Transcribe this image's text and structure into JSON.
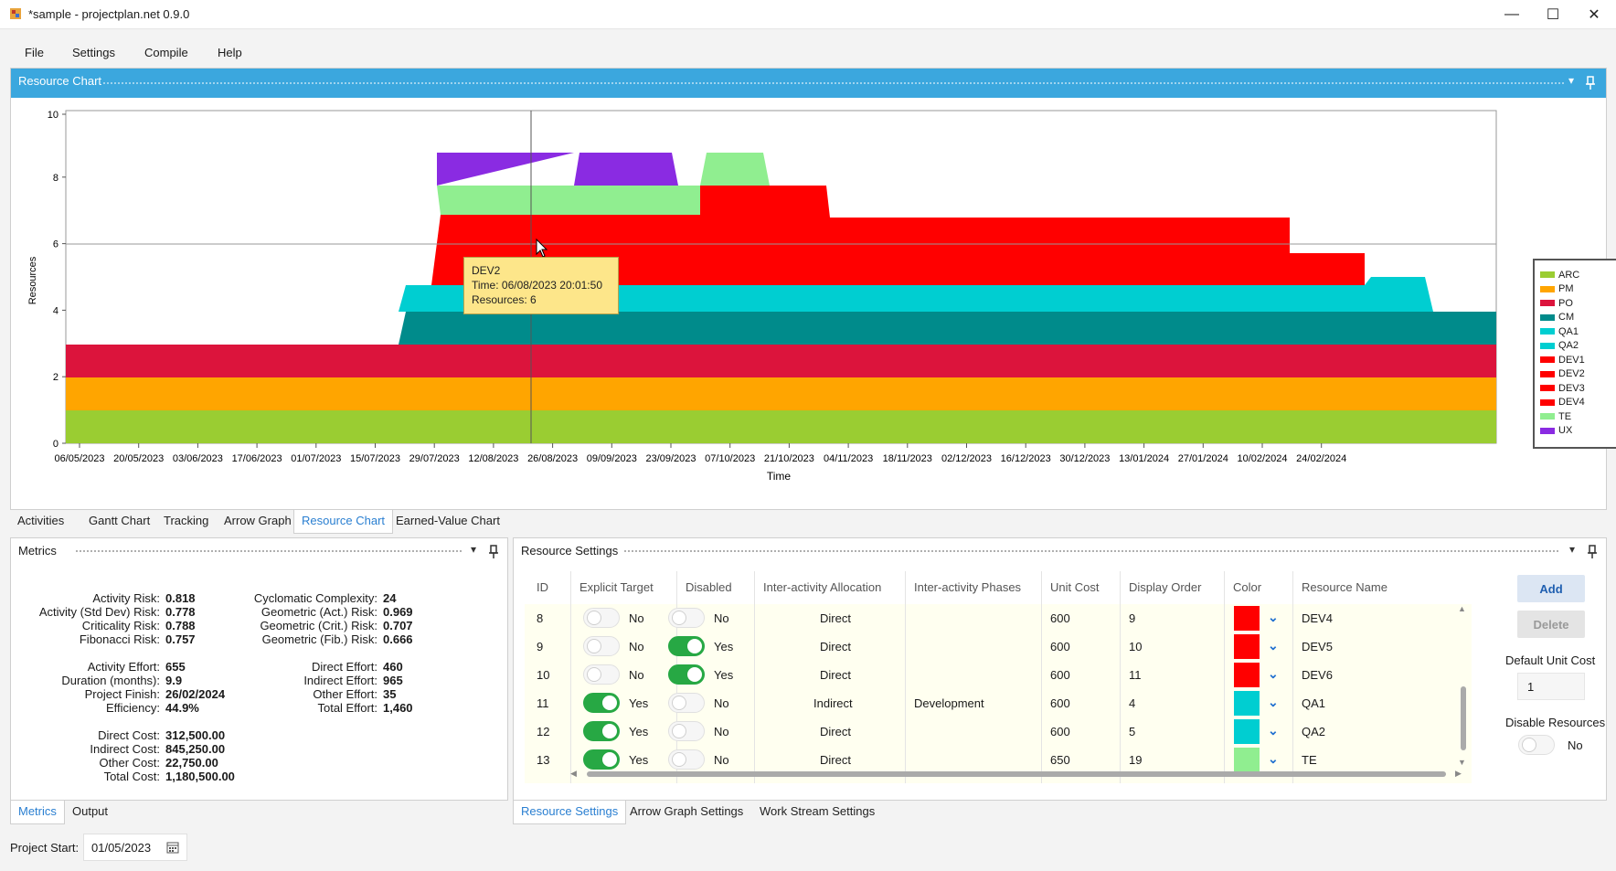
{
  "window": {
    "title": "*sample - projectplan.net 0.9.0",
    "minimize": "—",
    "maximize": "☐",
    "close": "✕"
  },
  "menu": [
    "File",
    "Settings",
    "Compile",
    "Help"
  ],
  "chart_panel": {
    "title": "Resource Chart",
    "dropdown_glyph": "▾",
    "pin_glyph": "📌"
  },
  "chart_data": {
    "type": "area",
    "xlabel": "Time",
    "ylabel": "Resources",
    "ylim": [
      0,
      10
    ],
    "y_ticks": [
      0,
      2,
      4,
      6,
      8,
      10
    ],
    "x_ticks": [
      "06/05/2023",
      "20/05/2023",
      "03/06/2023",
      "17/06/2023",
      "01/07/2023",
      "15/07/2023",
      "29/07/2023",
      "12/08/2023",
      "26/08/2023",
      "09/09/2023",
      "23/09/2023",
      "07/10/2023",
      "21/10/2023",
      "04/11/2023",
      "18/11/2023",
      "02/12/2023",
      "16/12/2023",
      "30/12/2023",
      "13/01/2024",
      "27/01/2024",
      "10/02/2024",
      "24/02/2024"
    ],
    "grid": "horizontal at 6",
    "legend_position": "right",
    "stack_order_bottom_to_top": [
      "ARC",
      "PM",
      "PO",
      "CM",
      "QA1",
      "DEV",
      "TE",
      "UX"
    ],
    "series": [
      {
        "name": "ARC",
        "color": "#9acd32",
        "description": "level 1 across full range"
      },
      {
        "name": "PM",
        "color": "#ffa500",
        "description": "level 1 across full range"
      },
      {
        "name": "PO",
        "color": "#dc143c",
        "description": "level 1 across full range"
      },
      {
        "name": "CM",
        "color": "#008b8b"
      },
      {
        "name": "QA1",
        "color": "#00ced1"
      },
      {
        "name": "QA2",
        "color": "#00ced1"
      },
      {
        "name": "DEV1",
        "color": "#ff0000"
      },
      {
        "name": "DEV2",
        "color": "#ff0000"
      },
      {
        "name": "DEV3",
        "color": "#ff0000"
      },
      {
        "name": "DEV4",
        "color": "#ff0000"
      },
      {
        "name": "TE",
        "color": "#90ee90"
      },
      {
        "name": "UX",
        "color": "#8a2be2"
      }
    ],
    "cursor_line_date": "06/08/2023",
    "tooltip": {
      "series": "DEV2",
      "time": "Time: 06/08/2023 20:01:50",
      "resources": "Resources: 6"
    }
  },
  "main_tabs": [
    "Activities",
    "Gantt Chart",
    "Tracking",
    "Arrow Graph",
    "Resource Chart",
    "Earned-Value Chart"
  ],
  "main_tabs_active": "Resource Chart",
  "metrics": {
    "title": "Metrics",
    "left": [
      {
        "label": "Activity Risk:",
        "value": "0.818"
      },
      {
        "label": "Activity (Std Dev) Risk:",
        "value": "0.778"
      },
      {
        "label": "Criticality Risk:",
        "value": "0.788"
      },
      {
        "label": "Fibonacci Risk:",
        "value": "0.757"
      },
      {
        "label": "Activity Effort:",
        "value": "655"
      },
      {
        "label": "Duration (months):",
        "value": "9.9"
      },
      {
        "label": "Project Finish:",
        "value": "26/02/2024"
      },
      {
        "label": "Efficiency:",
        "value": "44.9%"
      },
      {
        "label": "Direct Cost:",
        "value": "312,500.00"
      },
      {
        "label": "Indirect Cost:",
        "value": "845,250.00"
      },
      {
        "label": "Other Cost:",
        "value": "22,750.00"
      },
      {
        "label": "Total Cost:",
        "value": "1,180,500.00"
      }
    ],
    "right": [
      {
        "label": "Cyclomatic Complexity:",
        "value": "24"
      },
      {
        "label": "Geometric (Act.) Risk:",
        "value": "0.969"
      },
      {
        "label": "Geometric (Crit.) Risk:",
        "value": "0.707"
      },
      {
        "label": "Geometric (Fib.) Risk:",
        "value": "0.666"
      },
      {
        "label": "Direct Effort:",
        "value": "460"
      },
      {
        "label": "Indirect Effort:",
        "value": "965"
      },
      {
        "label": "Other Effort:",
        "value": "35"
      },
      {
        "label": "Total Effort:",
        "value": "1,460"
      }
    ]
  },
  "metrics_tabs": [
    "Metrics",
    "Output"
  ],
  "resource_settings": {
    "title": "Resource Settings",
    "columns": [
      "ID",
      "Explicit Target",
      "Disabled",
      "Inter-activity Allocation",
      "Inter-activity Phases",
      "Unit Cost",
      "Display Order",
      "Color",
      "Resource Name"
    ],
    "rows": [
      {
        "id": "8",
        "explicit": false,
        "explicit_text": "No",
        "disabled": false,
        "disabled_text": "No",
        "allocation": "Direct",
        "phases": "",
        "unit_cost": "600",
        "order": "9",
        "color": "#ff0000",
        "name": "DEV4"
      },
      {
        "id": "9",
        "explicit": false,
        "explicit_text": "No",
        "disabled": true,
        "disabled_text": "Yes",
        "allocation": "Direct",
        "phases": "",
        "unit_cost": "600",
        "order": "10",
        "color": "#ff0000",
        "name": "DEV5"
      },
      {
        "id": "10",
        "explicit": false,
        "explicit_text": "No",
        "disabled": true,
        "disabled_text": "Yes",
        "allocation": "Direct",
        "phases": "",
        "unit_cost": "600",
        "order": "11",
        "color": "#ff0000",
        "name": "DEV6"
      },
      {
        "id": "11",
        "explicit": true,
        "explicit_text": "Yes",
        "disabled": false,
        "disabled_text": "No",
        "allocation": "Indirect",
        "phases": "Development",
        "unit_cost": "600",
        "order": "4",
        "color": "#00ced1",
        "name": "QA1"
      },
      {
        "id": "12",
        "explicit": true,
        "explicit_text": "Yes",
        "disabled": false,
        "disabled_text": "No",
        "allocation": "Direct",
        "phases": "",
        "unit_cost": "600",
        "order": "5",
        "color": "#00ced1",
        "name": "QA2"
      },
      {
        "id": "13",
        "explicit": true,
        "explicit_text": "Yes",
        "disabled": false,
        "disabled_text": "No",
        "allocation": "Direct",
        "phases": "",
        "unit_cost": "650",
        "order": "19",
        "color": "#90ee90",
        "name": "TE"
      }
    ],
    "add_label": "Add",
    "delete_label": "Delete",
    "default_unit_cost_label": "Default Unit Cost",
    "default_unit_cost_value": "1",
    "disable_resources_label": "Disable Resources",
    "disable_resources_value": "No"
  },
  "settings_tabs": [
    "Resource Settings",
    "Arrow Graph Settings",
    "Work Stream Settings"
  ],
  "project_start_label": "Project Start:",
  "project_start_value": "01/05/2023"
}
